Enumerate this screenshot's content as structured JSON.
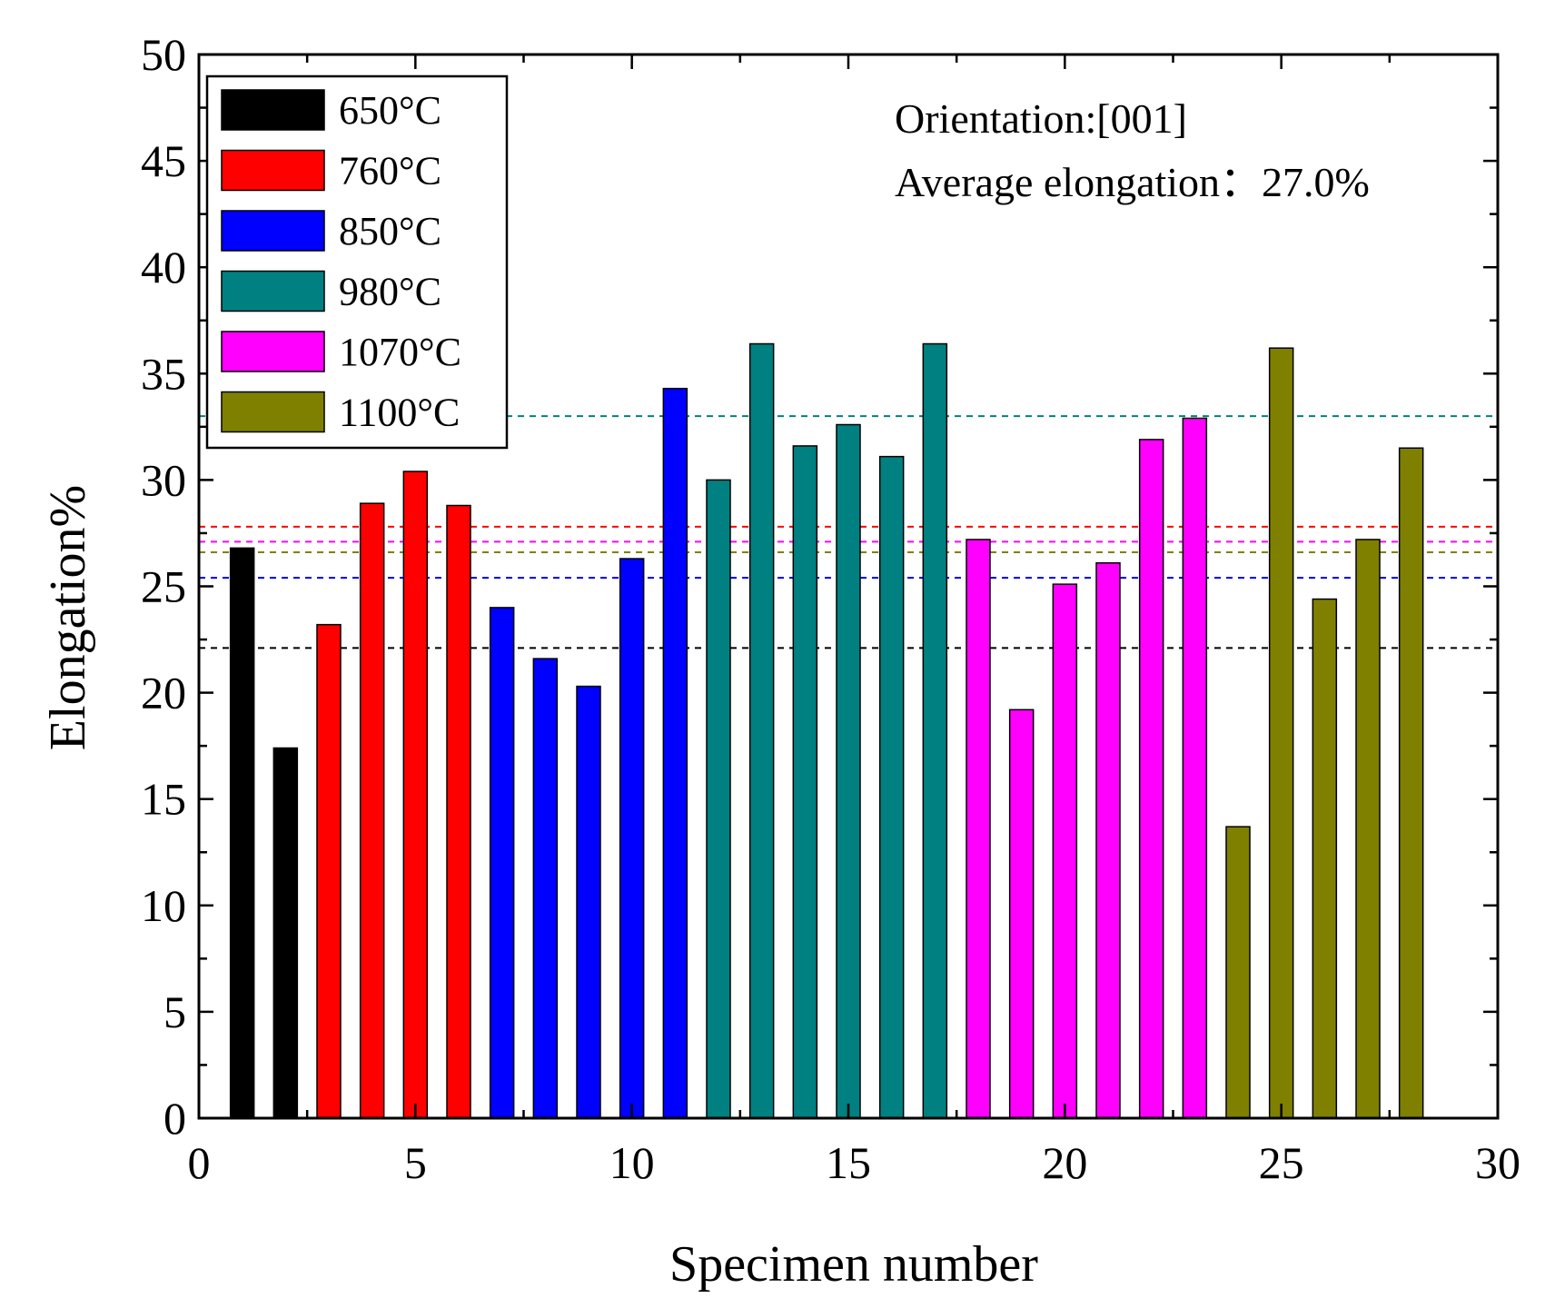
{
  "chart_data": {
    "type": "bar",
    "title": "",
    "xlabel": "Specimen number",
    "ylabel": "Elongation%",
    "xlim": [
      0,
      30
    ],
    "ylim": [
      0,
      50
    ],
    "x_ticks": [
      0,
      5,
      10,
      15,
      20,
      25,
      30
    ],
    "y_ticks": [
      0,
      5,
      10,
      15,
      20,
      25,
      30,
      35,
      40,
      45,
      50
    ],
    "grid": false,
    "legend_position": "top-left",
    "annotations": [
      "Orientation:[001]",
      "Average elongation：27.0%"
    ],
    "series": [
      {
        "name": "650°C",
        "color": "#000000",
        "x": [
          1,
          2
        ],
        "values": [
          26.8,
          17.4
        ],
        "average": 22.1
      },
      {
        "name": "760°C",
        "color": "#ff0000",
        "x": [
          3,
          4,
          5,
          6
        ],
        "values": [
          23.2,
          28.9,
          30.4,
          28.8
        ],
        "average": 27.8
      },
      {
        "name": "850°C",
        "color": "#0000ff",
        "x": [
          7,
          8,
          9,
          10,
          11
        ],
        "values": [
          24.0,
          21.6,
          20.3,
          26.3,
          34.3
        ],
        "average": 25.4
      },
      {
        "name": "980°C",
        "color": "#008080",
        "x": [
          12,
          13,
          14,
          15,
          16,
          17
        ],
        "values": [
          30.0,
          36.4,
          31.6,
          32.6,
          31.1,
          36.4
        ],
        "average": 33.0
      },
      {
        "name": "1070°C",
        "color": "#ff00ff",
        "x": [
          18,
          19,
          20,
          21,
          22,
          23
        ],
        "values": [
          27.2,
          19.2,
          25.1,
          26.1,
          31.9,
          32.9
        ],
        "average": 27.1
      },
      {
        "name": "1100°C",
        "color": "#808000",
        "x": [
          24,
          25,
          26,
          27,
          28
        ],
        "values": [
          13.7,
          36.2,
          24.4,
          27.2,
          31.5
        ],
        "average": 26.6
      }
    ]
  }
}
